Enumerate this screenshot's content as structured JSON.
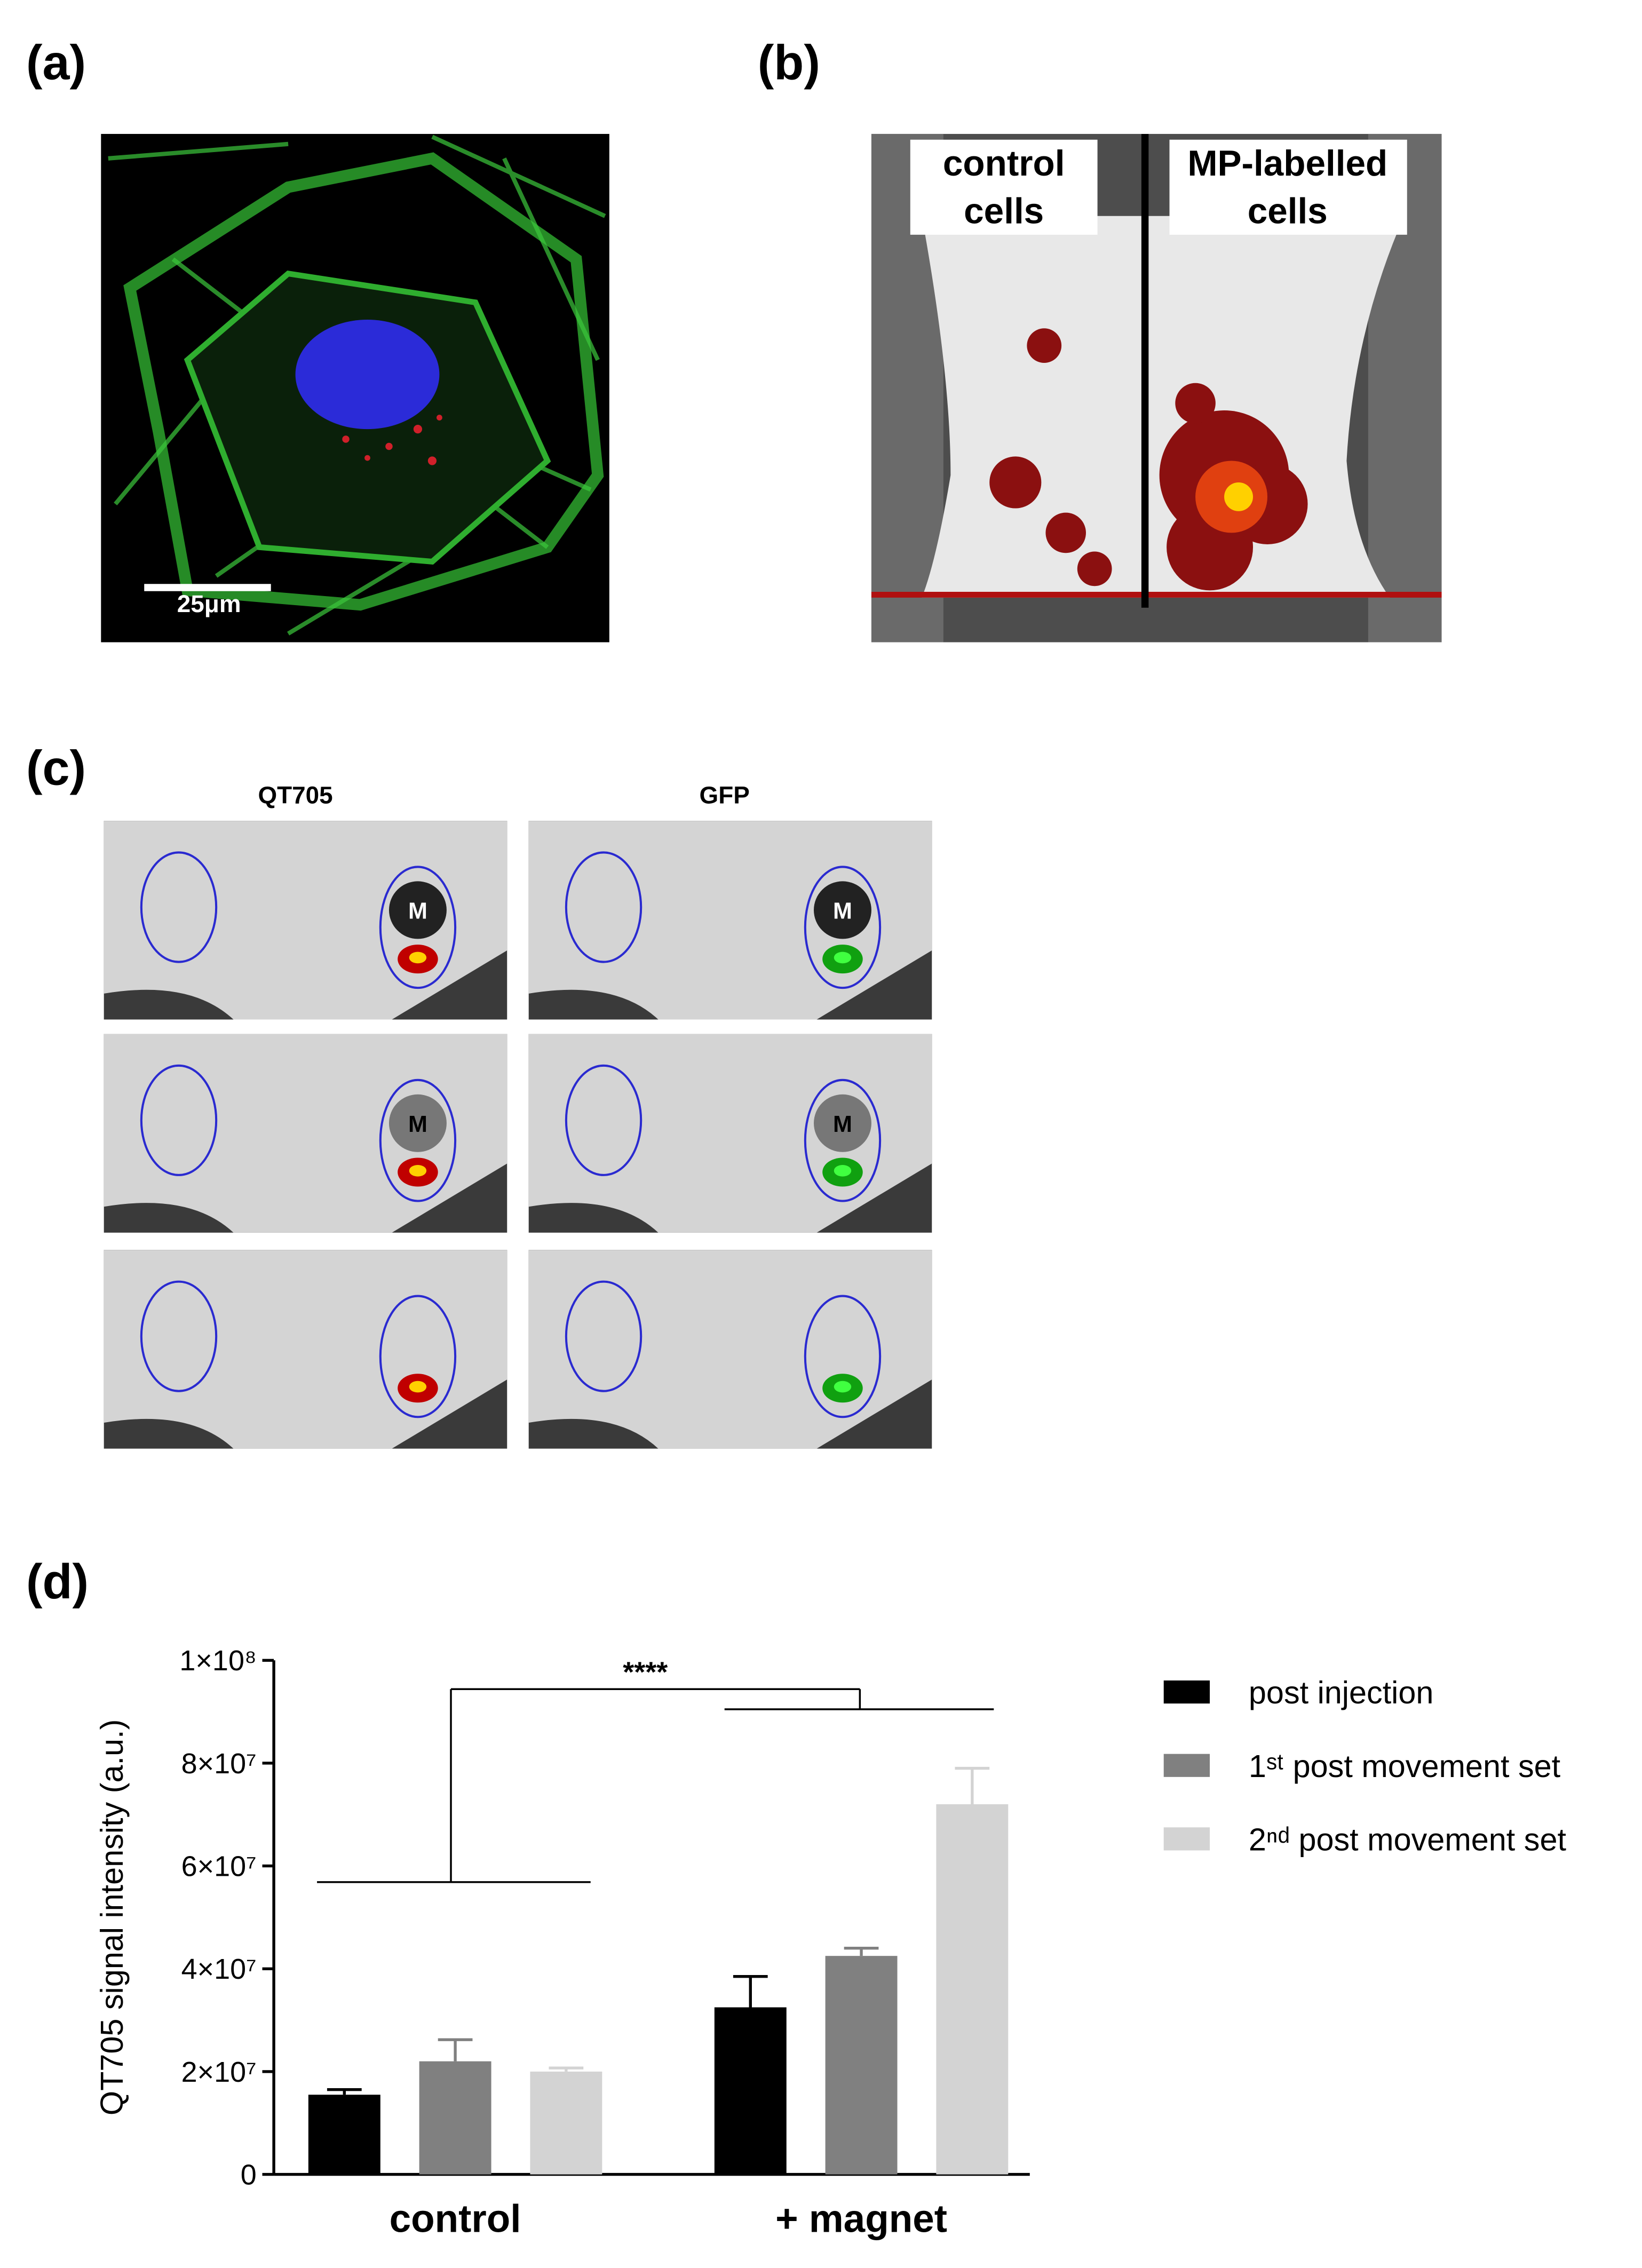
{
  "panels": {
    "a": {
      "label": "(a)",
      "scale_bar": "25μm"
    },
    "b": {
      "label": "(b)",
      "left_label": [
        "control",
        "cells"
      ],
      "right_label": [
        "MP-labelled",
        "cells"
      ]
    },
    "c": {
      "label": "(c)",
      "columns": [
        "QT705",
        "GFP"
      ],
      "magnet_marks": [
        "M",
        "M",
        "M",
        "M"
      ]
    },
    "d": {
      "label": "(d)"
    }
  },
  "chart_data": {
    "type": "bar",
    "y_label": "QT705 signal intensity (a.u.)",
    "annotation": "****",
    "categories": [
      "control",
      "+ magnet"
    ],
    "series": [
      {
        "name": "post injection",
        "color": "#000000",
        "values": [
          15500000,
          32500000
        ],
        "errors": [
          1000000,
          6000000
        ]
      },
      {
        "name": "1ˢᵗ post movement set",
        "color": "#808080",
        "values": [
          22000000,
          42500000
        ],
        "errors": [
          4200000,
          1500000
        ]
      },
      {
        "name": "2ⁿᵈ post movement set",
        "color": "#d3d3d3",
        "values": [
          20000000,
          72000000
        ],
        "errors": [
          700000,
          7000000
        ]
      }
    ],
    "ylim": [
      0,
      100000000
    ],
    "yticks": [
      0,
      {
        "value": 20000000,
        "label": "2×10⁷"
      },
      {
        "value": 40000000,
        "label": "4×10⁷"
      },
      {
        "value": 60000000,
        "label": "6×10⁷"
      },
      {
        "value": 80000000,
        "label": "8×10⁷"
      },
      {
        "value": 100000000,
        "label": "1×10⁸"
      }
    ],
    "legend": "right"
  }
}
